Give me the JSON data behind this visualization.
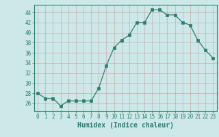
{
  "x": [
    0,
    1,
    2,
    3,
    4,
    5,
    6,
    7,
    8,
    9,
    10,
    11,
    12,
    13,
    14,
    15,
    16,
    17,
    18,
    19,
    20,
    21,
    22,
    23
  ],
  "y": [
    28,
    27,
    27,
    25.5,
    26.5,
    26.5,
    26.5,
    26.5,
    29,
    33.5,
    37,
    38.5,
    39.5,
    42,
    42,
    44.5,
    44.5,
    43.5,
    43.5,
    42,
    41.5,
    38.5,
    36.5,
    35
  ],
  "line_color": "#2e7d6e",
  "marker": "s",
  "marker_size": 2.5,
  "bg_color": "#cce8e8",
  "grid_color_major": "#b0b0b0",
  "grid_color_minor": "#d0d0d0",
  "xlabel": "Humidex (Indice chaleur)",
  "xlim": [
    -0.5,
    23.5
  ],
  "ylim": [
    24.5,
    45.5
  ],
  "yticks": [
    26,
    28,
    30,
    32,
    34,
    36,
    38,
    40,
    42,
    44
  ],
  "xticks": [
    0,
    1,
    2,
    3,
    4,
    5,
    6,
    7,
    8,
    9,
    10,
    11,
    12,
    13,
    14,
    15,
    16,
    17,
    18,
    19,
    20,
    21,
    22,
    23
  ],
  "tick_color": "#2e7d6e",
  "tick_fontsize": 5.5,
  "xlabel_fontsize": 7.0
}
